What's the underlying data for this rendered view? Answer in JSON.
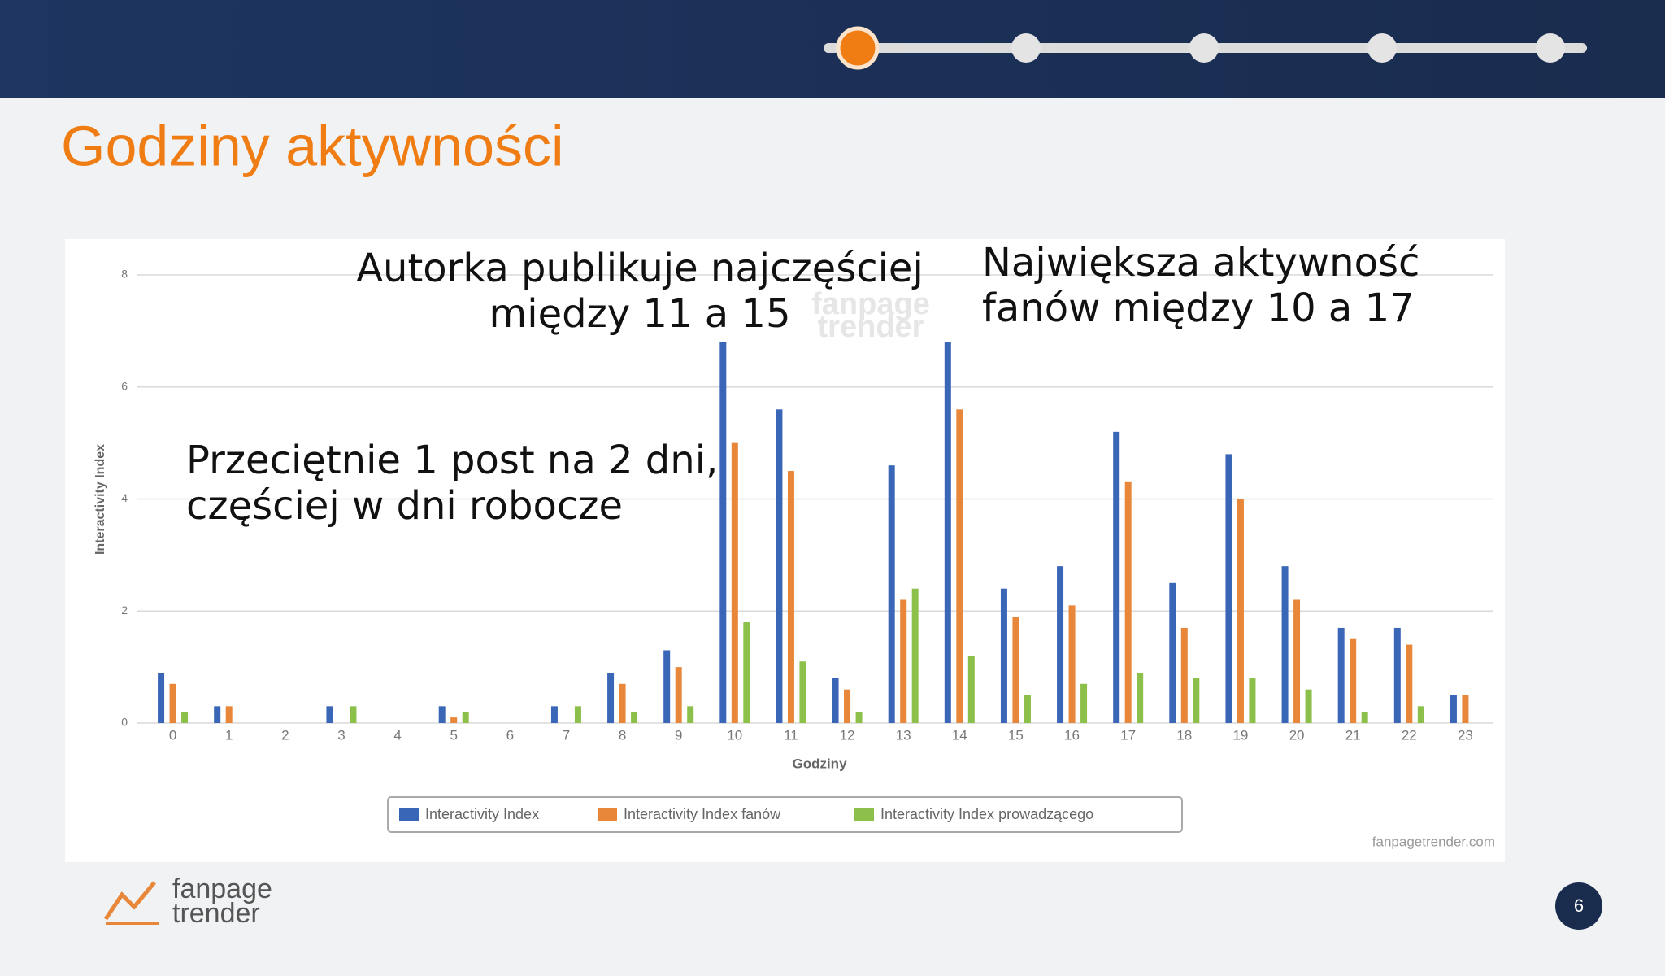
{
  "slide": {
    "title": "Godziny aktywności",
    "page_number": "6",
    "logo": [
      "fanpage",
      "trender"
    ]
  },
  "chart_data": {
    "type": "bar",
    "y_label": "Interactivity Index",
    "x_label": "Godziny",
    "annotations": [
      [
        "Autorka publikuje najczęściej",
        "między 11 a 15"
      ],
      [
        "Największa aktywność",
        "fanów między 10 a 17"
      ],
      [
        "Przeciętnie 1 post na 2 dni,",
        "częściej w dni robocze"
      ]
    ],
    "watermark": [
      "fanpage",
      "trender"
    ],
    "credit": "fanpagetrender.com",
    "categories": [
      "0",
      "1",
      "2",
      "3",
      "4",
      "5",
      "6",
      "7",
      "8",
      "9",
      "10",
      "11",
      "12",
      "13",
      "14",
      "15",
      "16",
      "17",
      "18",
      "19",
      "20",
      "21",
      "22",
      "23"
    ],
    "series": [
      {
        "name": "Interactivity Index",
        "color": "#3a66b8",
        "values": [
          0.9,
          0.3,
          0,
          0.3,
          0,
          0.3,
          0,
          0.3,
          0.9,
          1.3,
          6.8,
          5.6,
          0.8,
          4.6,
          6.8,
          2.4,
          2.8,
          5.2,
          2.5,
          4.8,
          2.8,
          1.7,
          1.7,
          0.5
        ]
      },
      {
        "name": "Interactivity Index fanów",
        "color": "#e8873a",
        "values": [
          0.7,
          0.3,
          0,
          0,
          0,
          0.1,
          0,
          0,
          0.7,
          1.0,
          5.0,
          4.5,
          0.6,
          2.2,
          5.6,
          1.9,
          2.1,
          4.3,
          1.7,
          4.0,
          2.2,
          1.5,
          1.4,
          0.5
        ]
      },
      {
        "name": "Interactivity Index prowadzącego",
        "color": "#8cc04a",
        "values": [
          0.2,
          0,
          0,
          0.3,
          0,
          0.2,
          0,
          0.3,
          0.2,
          0.3,
          1.8,
          1.1,
          0.2,
          2.4,
          1.2,
          0.5,
          0.7,
          0.9,
          0.8,
          0.8,
          0.6,
          0.2,
          0.3,
          0
        ]
      }
    ],
    "ylim": [
      0,
      8
    ],
    "yticks": [
      0,
      2,
      4,
      6,
      8
    ],
    "grid": true
  }
}
